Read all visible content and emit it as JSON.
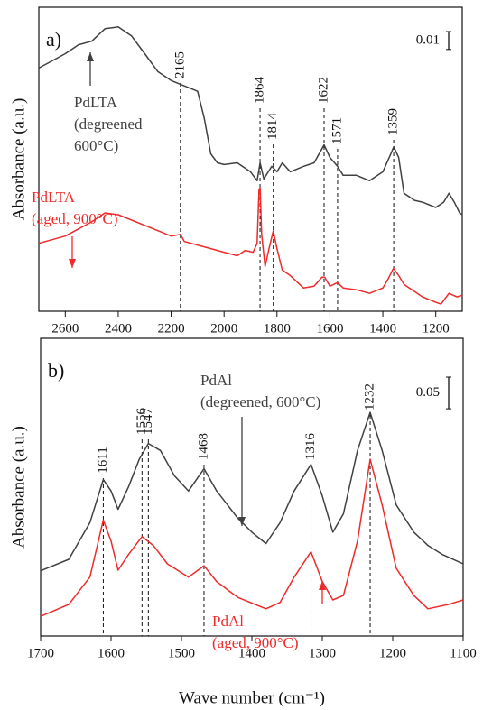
{
  "chart_data": [
    {
      "type": "line",
      "panel_label": "a)",
      "ylabel": "Absorbance (a.u.)",
      "xlim": [
        2700,
        1100
      ],
      "xticks": [
        2600,
        2400,
        2200,
        2000,
        1800,
        1600,
        1400,
        1200
      ],
      "ylim": [
        0,
        0.17
      ],
      "scale_bar": {
        "value": 0.01,
        "label": "0.01"
      },
      "peaks": [
        2165,
        1864,
        1814,
        1622,
        1571,
        1359
      ],
      "series": [
        {
          "label_lines": [
            "PdLTA",
            "(degreened",
            "600°C)"
          ],
          "color": "#404040",
          "x": [
            2700,
            2650,
            2600,
            2550,
            2500,
            2450,
            2400,
            2350,
            2300,
            2250,
            2200,
            2150,
            2100,
            2075,
            2050,
            2025,
            2000,
            1950,
            1900,
            1875,
            1864,
            1850,
            1820,
            1800,
            1780,
            1750,
            1700,
            1660,
            1622,
            1600,
            1571,
            1550,
            1500,
            1450,
            1400,
            1370,
            1359,
            1340,
            1320,
            1280,
            1250,
            1200,
            1170,
            1150,
            1130,
            1110,
            1100
          ],
          "values": [
            0.136,
            0.14,
            0.144,
            0.149,
            0.151,
            0.158,
            0.159,
            0.154,
            0.144,
            0.134,
            0.129,
            0.126,
            0.123,
            0.108,
            0.088,
            0.083,
            0.082,
            0.083,
            0.078,
            0.073,
            0.083,
            0.074,
            0.081,
            0.078,
            0.083,
            0.078,
            0.081,
            0.083,
            0.093,
            0.086,
            0.081,
            0.076,
            0.076,
            0.073,
            0.078,
            0.088,
            0.092,
            0.086,
            0.066,
            0.062,
            0.061,
            0.058,
            0.061,
            0.066,
            0.061,
            0.055,
            0.054
          ]
        },
        {
          "label_lines": [
            "PdLTA",
            "(aged, 900°C)"
          ],
          "color": "#ee2a2a",
          "x": [
            2700,
            2600,
            2500,
            2450,
            2400,
            2300,
            2200,
            2165,
            2150,
            2050,
            2000,
            1950,
            1920,
            1890,
            1875,
            1868,
            1864,
            1858,
            1845,
            1830,
            1814,
            1800,
            1780,
            1750,
            1700,
            1660,
            1630,
            1620,
            1600,
            1571,
            1550,
            1500,
            1450,
            1400,
            1380,
            1360,
            1340,
            1320,
            1300,
            1250,
            1200,
            1180,
            1150,
            1120,
            1100
          ],
          "values": [
            0.038,
            0.042,
            0.05,
            0.055,
            0.054,
            0.048,
            0.042,
            0.043,
            0.039,
            0.035,
            0.033,
            0.031,
            0.034,
            0.033,
            0.038,
            0.068,
            0.069,
            0.043,
            0.025,
            0.035,
            0.045,
            0.035,
            0.023,
            0.02,
            0.013,
            0.014,
            0.019,
            0.019,
            0.014,
            0.016,
            0.013,
            0.012,
            0.01,
            0.013,
            0.018,
            0.024,
            0.02,
            0.015,
            0.013,
            0.008,
            0.005,
            0.004,
            0.01,
            0.008,
            0.009
          ]
        }
      ]
    },
    {
      "type": "line",
      "panel_label": "b)",
      "ylabel": "Absorbance (a.u.)",
      "xlabel": "Wave number (cm⁻¹)",
      "xlim": [
        1700,
        1100
      ],
      "xticks": [
        1700,
        1600,
        1500,
        1400,
        1300,
        1200,
        1100
      ],
      "ylim": [
        0,
        0.47
      ],
      "scale_bar": {
        "value": 0.05,
        "label": "0.05"
      },
      "peaks": [
        1611,
        1556,
        1547,
        1468,
        1316,
        1232
      ],
      "series": [
        {
          "label_lines": [
            "PdAl",
            "(degreened, 600°C)"
          ],
          "color": "#404040",
          "x": [
            1700,
            1660,
            1630,
            1611,
            1600,
            1590,
            1575,
            1560,
            1547,
            1530,
            1510,
            1490,
            1468,
            1450,
            1420,
            1400,
            1380,
            1360,
            1340,
            1316,
            1300,
            1285,
            1270,
            1250,
            1232,
            1215,
            1195,
            1170,
            1150,
            1130,
            1100
          ],
          "values": [
            0.103,
            0.121,
            0.179,
            0.247,
            0.229,
            0.2,
            0.236,
            0.279,
            0.304,
            0.293,
            0.253,
            0.229,
            0.264,
            0.229,
            0.186,
            0.164,
            0.146,
            0.179,
            0.229,
            0.271,
            0.221,
            0.164,
            0.193,
            0.293,
            0.353,
            0.293,
            0.207,
            0.164,
            0.143,
            0.129,
            0.114
          ]
        },
        {
          "label_lines": [
            "PdAl",
            "(aged, 900°C)"
          ],
          "color": "#ee2a2a",
          "x": [
            1700,
            1660,
            1630,
            1611,
            1600,
            1590,
            1575,
            1556,
            1540,
            1520,
            1490,
            1468,
            1450,
            1420,
            1380,
            1360,
            1340,
            1316,
            1300,
            1285,
            1270,
            1250,
            1232,
            1215,
            1195,
            1170,
            1150,
            1120,
            1100
          ],
          "values": [
            0.031,
            0.05,
            0.093,
            0.183,
            0.15,
            0.104,
            0.129,
            0.157,
            0.143,
            0.114,
            0.093,
            0.111,
            0.086,
            0.061,
            0.043,
            0.053,
            0.093,
            0.133,
            0.086,
            0.057,
            0.064,
            0.15,
            0.279,
            0.207,
            0.107,
            0.064,
            0.043,
            0.05,
            0.057
          ]
        }
      ]
    }
  ]
}
